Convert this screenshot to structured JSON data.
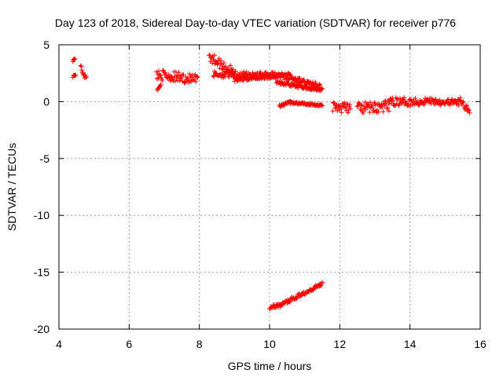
{
  "chart_data": {
    "type": "scatter",
    "title": "Day 123 of 2018, Sidereal Day-to-day VTEC variation (SDTVAR) for receiver p776",
    "xlabel": "GPS time / hours",
    "ylabel": "SDTVAR / TECUs",
    "xlim": [
      4,
      16
    ],
    "ylim": [
      -20,
      5
    ],
    "xticks": [
      4,
      6,
      8,
      10,
      12,
      14,
      16
    ],
    "xtick_labels": [
      "4",
      "6",
      "8",
      "10",
      "12",
      "14",
      "16"
    ],
    "yticks": [
      5,
      0,
      -5,
      -10,
      -15,
      -20
    ],
    "ytick_labels": [
      "5",
      "0",
      "-5",
      "-10",
      "-15",
      "-20"
    ],
    "grid": true,
    "marker": "+",
    "color": "#ff0000",
    "series": [
      {
        "name": "SDTVAR",
        "segments": [
          {
            "x_start": 4.4,
            "x_end": 4.45,
            "y_start": 3.6,
            "y_end": 3.8,
            "band": 0.15
          },
          {
            "x_start": 4.4,
            "x_end": 4.48,
            "y_start": 2.2,
            "y_end": 2.4,
            "band": 0.2
          },
          {
            "x_start": 4.62,
            "x_end": 4.78,
            "y_start": 3.0,
            "y_end": 2.0,
            "band": 0.5
          },
          {
            "x_start": 6.78,
            "x_end": 7.95,
            "y_start": 2.4,
            "y_end": 1.9,
            "band": 0.9
          },
          {
            "x_start": 6.8,
            "x_end": 6.9,
            "y_start": 1.0,
            "y_end": 1.5,
            "band": 0.15
          },
          {
            "x_start": 8.28,
            "x_end": 9.0,
            "y_start": 4.0,
            "y_end": 2.5,
            "band": 0.9
          },
          {
            "x_start": 8.4,
            "x_end": 10.3,
            "y_start": 2.4,
            "y_end": 2.3,
            "band": 0.6
          },
          {
            "x_start": 9.0,
            "x_end": 10.6,
            "y_start": 1.9,
            "y_end": 2.4,
            "band": 0.3
          },
          {
            "x_start": 10.3,
            "x_end": 11.5,
            "y_start": 2.3,
            "y_end": 1.3,
            "band": 0.5
          },
          {
            "x_start": 10.2,
            "x_end": 11.45,
            "y_start": 1.7,
            "y_end": 1.0,
            "band": 0.3
          },
          {
            "x_start": 10.28,
            "x_end": 10.6,
            "y_start": -0.4,
            "y_end": 0.0,
            "band": 0.2
          },
          {
            "x_start": 10.6,
            "x_end": 11.5,
            "y_start": -0.1,
            "y_end": -0.3,
            "band": 0.2
          },
          {
            "x_start": 11.8,
            "x_end": 12.3,
            "y_start": -0.5,
            "y_end": -0.5,
            "band": 1.0
          },
          {
            "x_start": 12.5,
            "x_end": 13.4,
            "y_start": -0.6,
            "y_end": -0.4,
            "band": 1.0
          },
          {
            "x_start": 13.4,
            "x_end": 14.4,
            "y_start": 0.0,
            "y_end": 0.0,
            "band": 0.7
          },
          {
            "x_start": 14.4,
            "x_end": 15.4,
            "y_start": 0.1,
            "y_end": -0.1,
            "band": 0.6
          },
          {
            "x_start": 15.4,
            "x_end": 15.7,
            "y_start": 0.2,
            "y_end": -0.9,
            "band": 0.6
          },
          {
            "x_start": 10.0,
            "x_end": 10.3,
            "y_start": -18.1,
            "y_end": -17.9,
            "band": 0.3
          },
          {
            "x_start": 10.3,
            "x_end": 11.5,
            "y_start": -17.9,
            "y_end": -16.0,
            "band": 0.3
          }
        ]
      }
    ]
  }
}
